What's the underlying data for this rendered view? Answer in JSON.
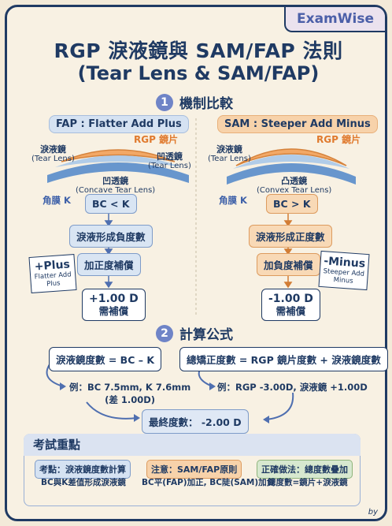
{
  "brand": "ExamWise",
  "title": {
    "line1": "RGP 淚液鏡與 SAM/FAP 法則",
    "line2": "(Tear Lens & SAM/FAP)"
  },
  "section1": {
    "num": "1",
    "label": "機制比較"
  },
  "section2": {
    "num": "2",
    "label": "計算公式"
  },
  "fap": {
    "header": "FAP : Flatter Add Plus",
    "rgp": "RGP 鏡片",
    "tear_lens": "淚液鏡",
    "tear_lens_en": "(Tear Lens)",
    "concave": "凹透鏡",
    "concave_en": "(Tear Lens)",
    "cornea": "角膜 K",
    "lens_type": "凹透鏡",
    "lens_type_en": "(Concave Tear Lens)",
    "condition": "BC < K",
    "result": "淚液形成負度數",
    "action": "加正度補償",
    "compensation_line1": "+1.00 D",
    "compensation_line2": "需補償",
    "note_big": "+Plus",
    "note_small1": "Flatter Add",
    "note_small2": "Plus"
  },
  "sam": {
    "header": "SAM : Steeper Add Minus",
    "rgp": "RGP 鏡片",
    "tear_lens": "淚液鏡",
    "tear_lens_en": "(Tear Lens)",
    "cornea": "角膜 K",
    "lens_type": "凸透鏡",
    "lens_type_en": "(Convex Tear Lens)",
    "condition": "BC > K",
    "result": "淚液形成正度數",
    "action": "加負度補償",
    "compensation_line1": "-1.00 D",
    "compensation_line2": "需補償",
    "note_big": "-Minus",
    "note_small1": "Steeper Add",
    "note_small2": "Minus"
  },
  "formulas": {
    "left": "淚液鏡度數 = BC – K",
    "right": "總矯正度數 = RGP 鏡片度數 + 淚液鏡度數",
    "left_example_line1": "例：BC 7.5mm, K 7.6mm",
    "left_example_line2": "(差 1.00D)",
    "right_example": "例：RGP -3.00D, 淚液鏡 +1.00D",
    "final": "最終度數： -2.00 D"
  },
  "exam": {
    "title": "考試重點",
    "tag1": "考點：淚液鏡度數計算",
    "sub1": "BC與K差值形成淚液鏡",
    "tag2": "注意：SAM/FAP原則",
    "sub2": "BC平(FAP)加正, BC陡(SAM)加負",
    "tag3": "正確做法：總度數疊加",
    "sub3": "總度數=鏡片+淚液鏡"
  },
  "byline": "by"
}
